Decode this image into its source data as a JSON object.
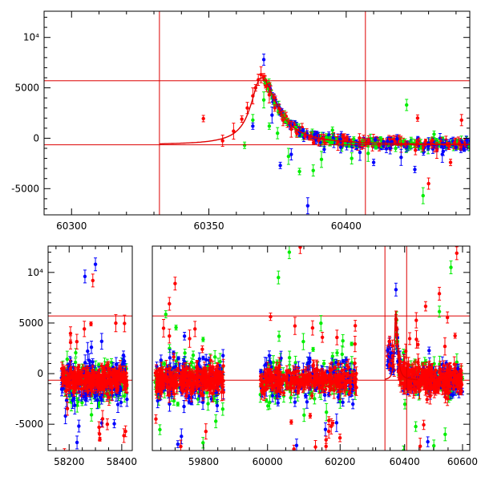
{
  "chart_data": [
    {
      "type": "scatter",
      "title": "",
      "xlabel": "",
      "ylabel": "",
      "xlim": [
        60290,
        60445
      ],
      "ylim": [
        -7600,
        12600
      ],
      "x_ticks": [
        "60300",
        "60350",
        "60400"
      ],
      "x_tick_values": [
        60300,
        60350,
        60400
      ],
      "y_ticks": [
        "-5000",
        "0",
        "5000",
        "10⁴"
      ],
      "y_tick_values": [
        -5000,
        0,
        5000,
        10000
      ],
      "reference_lines": {
        "horizontal": [
          5700,
          -650
        ],
        "vertical": [
          60332,
          60407
        ]
      },
      "model_curve": {
        "baseline": -650,
        "peak_x": 60369,
        "peak_y": 6000,
        "start_x": 60332,
        "end_x": 60445
      },
      "colors": {
        "red": "#ff0000",
        "green": "#00ee00",
        "blue": "#0000ff",
        "line": "#dd0000"
      },
      "series": [
        {
          "color": "red",
          "x": [
            60348,
            60355,
            60359,
            60362,
            60364,
            60366,
            60367,
            60368,
            60369,
            60370,
            60371,
            60372,
            60374,
            60377,
            60380,
            60385,
            60390,
            60397,
            60405,
            60412,
            60420,
            60426,
            60430,
            60433,
            60438,
            60442
          ],
          "y": [
            1950,
            -250,
            700,
            1900,
            3000,
            4200,
            5000,
            5800,
            6300,
            6100,
            5200,
            4300,
            3000,
            1800,
            900,
            200,
            -200,
            -400,
            -550,
            -700,
            -600,
            2000,
            -4500,
            -1200,
            -2400,
            1800
          ]
        },
        {
          "color": "green",
          "x": [
            60363,
            60366,
            60370,
            60372,
            60375,
            60379,
            60383,
            60388,
            60391,
            60395,
            60402,
            60408,
            60418,
            60422,
            60428,
            60432
          ],
          "y": [
            -700,
            1800,
            3800,
            1200,
            500,
            -1800,
            -3300,
            -3200,
            -2100,
            800,
            -2000,
            -1500,
            -1000,
            3300,
            -5700,
            400
          ]
        },
        {
          "color": "blue",
          "x": [
            60366,
            60370,
            60373,
            60376,
            60380,
            60386,
            60392,
            60398,
            60405,
            60410,
            60416,
            60420,
            60425,
            60430,
            60435,
            60440,
            60444
          ],
          "y": [
            1200,
            7800,
            2300,
            -2700,
            -1600,
            -6700,
            -1100,
            -900,
            -1400,
            -2400,
            -1000,
            -1900,
            -3100,
            -500,
            -1600,
            -900,
            -600
          ]
        }
      ]
    },
    {
      "type": "scatter",
      "title": "",
      "xlabel": "",
      "ylabel": "",
      "ylim": [
        -7600,
        12600
      ],
      "y_ticks": [
        "-5000",
        "0",
        "5000",
        "10⁴"
      ],
      "y_tick_values": [
        -5000,
        0,
        5000,
        10000
      ],
      "segments": [
        {
          "xlim": [
            58120,
            58440
          ],
          "x_ticks": [
            "58200",
            "58400"
          ],
          "x_tick_values": [
            58200,
            58400
          ],
          "data_range": [
            58170,
            58420
          ]
        },
        {
          "xlim": [
            59620,
            59910
          ],
          "x_ticks": [
            "59800"
          ],
          "x_tick_values": [
            59800
          ],
          "data_range": [
            59630,
            59870
          ]
        },
        {
          "xlim": [
            59910,
            60290
          ],
          "x_ticks": [
            "60000",
            "60200"
          ],
          "x_tick_values": [
            60000,
            60200
          ],
          "data_range": [
            59980,
            60245
          ]
        },
        {
          "xlim": [
            60290,
            60625
          ],
          "x_ticks": [
            "60400",
            "60600"
          ],
          "x_tick_values": [
            60400,
            60600
          ],
          "data_range": [
            60370,
            60600
          ]
        }
      ],
      "reference_lines": {
        "horizontal": [
          5700,
          -650
        ],
        "vertical": [
          60332,
          60407
        ]
      },
      "model_curve": {
        "baseline": -650,
        "peak_x": 60369,
        "peak_y": 6000,
        "start_x": 60332,
        "end_x": 60445
      },
      "colors": {
        "red": "#ff0000",
        "green": "#00ee00",
        "blue": "#0000ff",
        "line": "#dd0000"
      },
      "outliers": [
        {
          "color": "blue",
          "x": 58300,
          "y": 10800
        },
        {
          "color": "blue",
          "x": 58260,
          "y": 9600
        },
        {
          "color": "red",
          "x": 58290,
          "y": 9200
        },
        {
          "color": "red",
          "x": 59700,
          "y": 8900
        },
        {
          "color": "red",
          "x": 59680,
          "y": 6900
        },
        {
          "color": "green",
          "x": 60060,
          "y": 12000
        },
        {
          "color": "green",
          "x": 60030,
          "y": 9500
        },
        {
          "color": "red",
          "x": 60090,
          "y": 12500
        },
        {
          "color": "blue",
          "x": 60370,
          "y": 8300
        },
        {
          "color": "red",
          "x": 60580,
          "y": 11900
        },
        {
          "color": "green",
          "x": 60560,
          "y": 10500
        },
        {
          "color": "red",
          "x": 60520,
          "y": 7900
        },
        {
          "color": "blue",
          "x": 58230,
          "y": -6800
        },
        {
          "color": "red",
          "x": 59720,
          "y": -7200
        },
        {
          "color": "blue",
          "x": 60080,
          "y": -7100
        },
        {
          "color": "green",
          "x": 60540,
          "y": -6000
        }
      ]
    }
  ]
}
